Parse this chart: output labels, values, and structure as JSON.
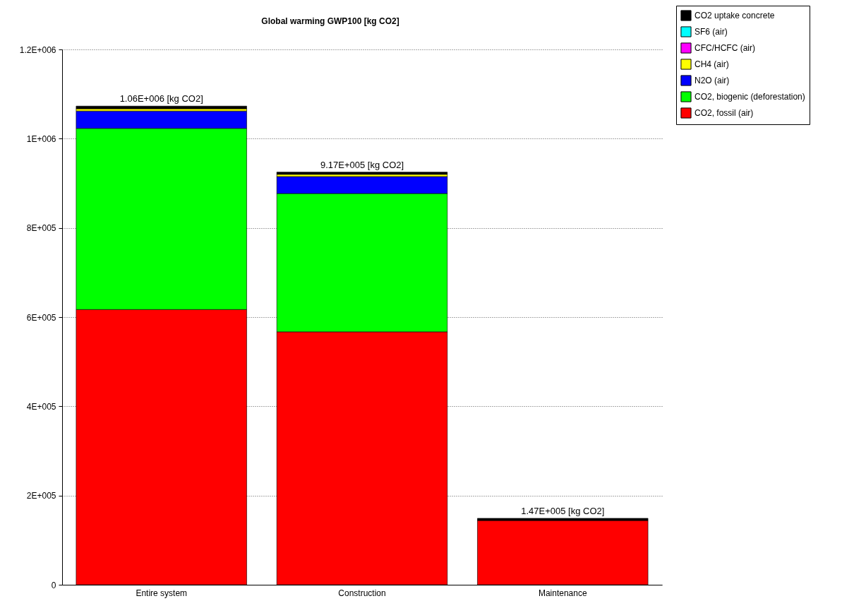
{
  "chart_data": {
    "type": "bar",
    "title": "Global warming GWP100 [kg CO2]",
    "stacked": true,
    "categories": [
      "Entire system",
      "Construction",
      "Maintenance"
    ],
    "series": [
      {
        "name": "CO2, fossil (air)",
        "color": "#ff0000",
        "values": [
          617000,
          567000,
          144000
        ]
      },
      {
        "name": "CO2, biogenic (deforestation)",
        "color": "#00ff00",
        "values": [
          406000,
          310000,
          null
        ]
      },
      {
        "name": "N2O (air)",
        "color": "#0000ff",
        "values": [
          39000,
          38000,
          null
        ]
      },
      {
        "name": "CH4 (air)",
        "color": "#ffff00",
        "values": [
          5000,
          5000,
          null
        ]
      },
      {
        "name": "CFC/HCFC (air)",
        "color": "#ff00ff",
        "values": [
          null,
          null,
          null
        ]
      },
      {
        "name": "SF6 (air)",
        "color": "#00ffff",
        "values": [
          null,
          null,
          null
        ]
      },
      {
        "name": "CO2 uptake concrete",
        "color": "#000000",
        "values": [
          6000,
          5000,
          5000
        ]
      }
    ],
    "totals": [
      "1.06E+006 [kg CO2]",
      "9.17E+005 [kg CO2]",
      "1.47E+005 [kg CO2]"
    ],
    "ylim": [
      0,
      1200000
    ],
    "yticks": [
      {
        "value": 0,
        "label": "0"
      },
      {
        "value": 200000,
        "label": "2E+005"
      },
      {
        "value": 400000,
        "label": "4E+005"
      },
      {
        "value": 600000,
        "label": "6E+005"
      },
      {
        "value": 800000,
        "label": "8E+005"
      },
      {
        "value": 1000000,
        "label": "1E+006"
      },
      {
        "value": 1200000,
        "label": "1.2E+006"
      }
    ],
    "grid": "y",
    "legend": "top right"
  }
}
